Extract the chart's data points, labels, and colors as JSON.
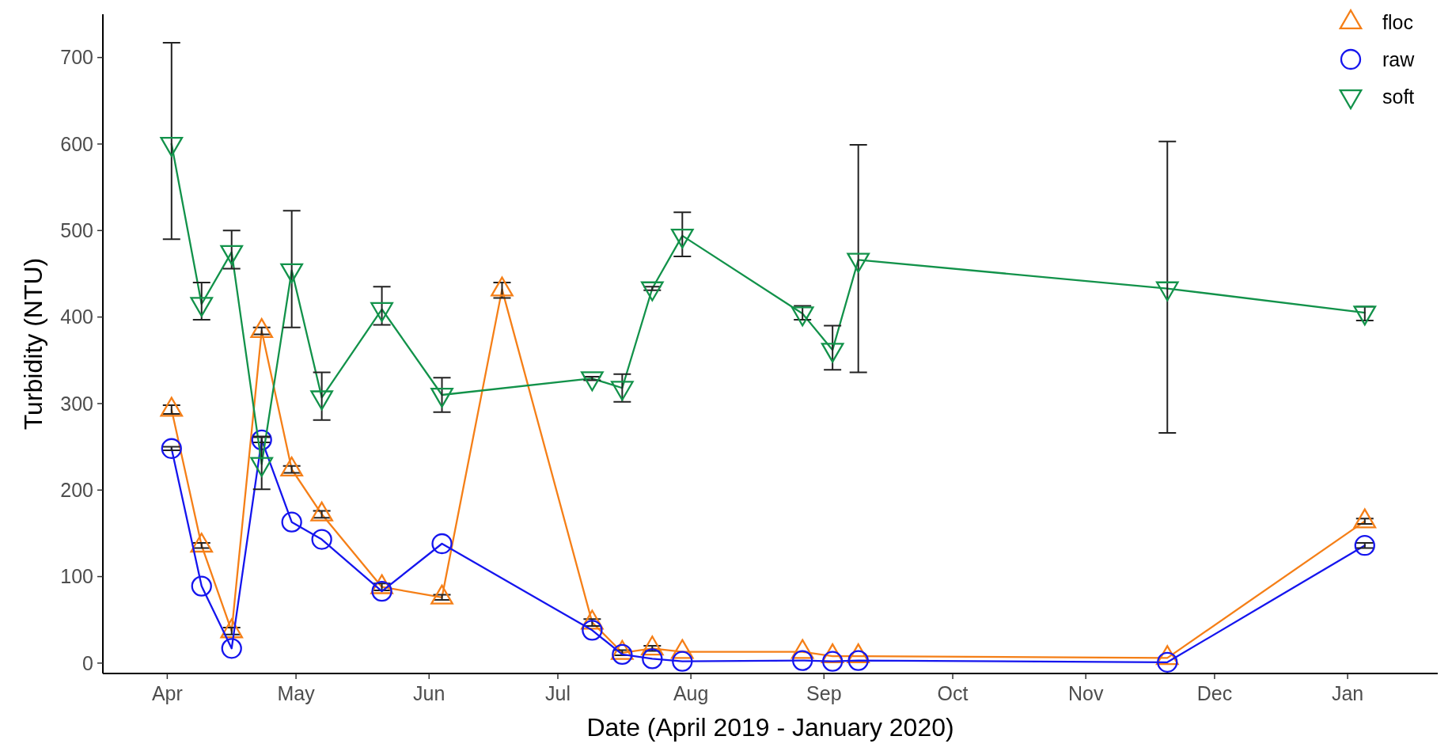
{
  "chart_data": {
    "type": "line",
    "xlabel": "Date (April 2019 - January 2020)",
    "ylabel": "Turbidity (NTU)",
    "x": [
      "2019-04-02",
      "2019-04-09",
      "2019-04-16",
      "2019-04-23",
      "2019-04-30",
      "2019-05-07",
      "2019-05-21",
      "2019-06-04",
      "2019-06-18",
      "2019-07-09",
      "2019-07-16",
      "2019-07-23",
      "2019-07-30",
      "2019-08-27",
      "2019-09-03",
      "2019-09-09",
      "2019-11-20",
      "2020-01-05"
    ],
    "series": [
      {
        "name": "floc",
        "color": "#f57f17",
        "marker": "triangle",
        "x": [
          "2019-04-02",
          "2019-04-09",
          "2019-04-16",
          "2019-04-23",
          "2019-04-30",
          "2019-05-07",
          "2019-05-21",
          "2019-06-04",
          "2019-06-18",
          "2019-07-09",
          "2019-07-16",
          "2019-07-23",
          "2019-07-30",
          "2019-08-27",
          "2019-09-03",
          "2019-09-09",
          "2019-11-20",
          "2020-01-05"
        ],
        "values": [
          293,
          136,
          37,
          384,
          224,
          172,
          88,
          76,
          432,
          47,
          12,
          17,
          13,
          13,
          8,
          8,
          6,
          164
        ],
        "errors": [
          5,
          3,
          4,
          4,
          4,
          4,
          4,
          3,
          [
            422,
            440
          ],
          4,
          3,
          3,
          null,
          null,
          null,
          null,
          null,
          3
        ]
      },
      {
        "name": "raw",
        "color": "#1515ee",
        "marker": "circle",
        "values": [
          248,
          89,
          17,
          258,
          163,
          143,
          83,
          138,
          null,
          38,
          10,
          5,
          2,
          3,
          2,
          3,
          1,
          136
        ],
        "errors": [
          2,
          null,
          null,
          3,
          null,
          null,
          null,
          null,
          null,
          null,
          null,
          null,
          null,
          null,
          null,
          null,
          null,
          3
        ]
      },
      {
        "name": "soft",
        "color": "#12924a",
        "marker": "triangle-down",
        "values": [
          600,
          415,
          475,
          230,
          454,
          307,
          409,
          310,
          null,
          329,
          318,
          433,
          494,
          404,
          362,
          466,
          433,
          405
        ],
        "errors": [
          [
            490,
            717
          ],
          [
            397,
            440
          ],
          [
            456,
            500
          ],
          [
            201,
            262
          ],
          [
            388,
            523
          ],
          [
            281,
            336
          ],
          [
            391,
            435
          ],
          [
            290,
            330
          ],
          null,
          2,
          [
            302,
            334
          ],
          2,
          [
            470,
            521
          ],
          [
            397,
            413
          ],
          [
            339,
            390
          ],
          [
            336,
            599
          ],
          [
            266,
            603
          ],
          [
            396,
            412
          ]
        ]
      }
    ],
    "xlim": [
      "2019-03-17",
      "2020-01-22"
    ],
    "xticks": [
      {
        "value": "2019-04-01",
        "label": "Apr"
      },
      {
        "value": "2019-05-01",
        "label": "May"
      },
      {
        "value": "2019-06-01",
        "label": "Jun"
      },
      {
        "value": "2019-07-01",
        "label": "Jul"
      },
      {
        "value": "2019-08-01",
        "label": "Aug"
      },
      {
        "value": "2019-09-01",
        "label": "Sep"
      },
      {
        "value": "2019-10-01",
        "label": "Oct"
      },
      {
        "value": "2019-11-01",
        "label": "Nov"
      },
      {
        "value": "2019-12-01",
        "label": "Dec"
      },
      {
        "value": "2020-01-01",
        "label": "Jan"
      }
    ],
    "ylim": [
      -12,
      750
    ],
    "yticks": [
      0,
      100,
      200,
      300,
      400,
      500,
      600,
      700
    ],
    "grid": false,
    "legend": "top right",
    "line_style": "solid"
  }
}
